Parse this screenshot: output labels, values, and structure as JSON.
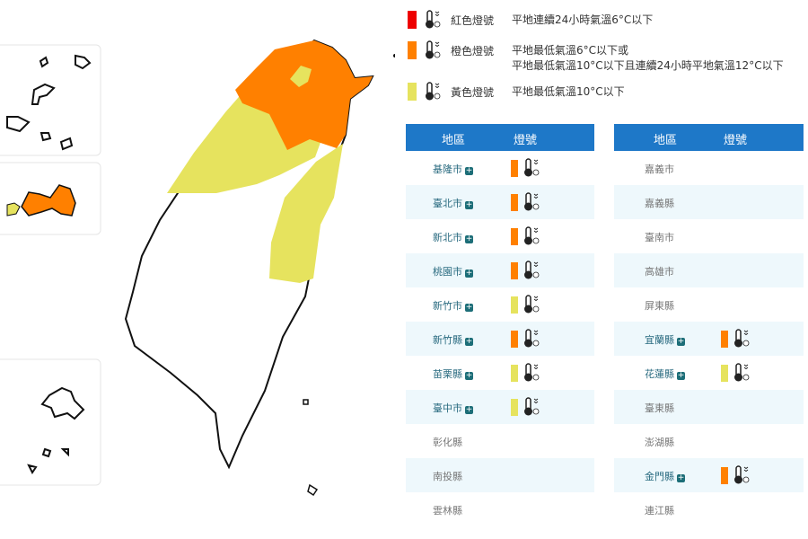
{
  "colors": {
    "red": "#ee0000",
    "orange": "#ff8000",
    "yellow": "#e6e35e",
    "header": "#1e78c8"
  },
  "legend": [
    {
      "name": "紅色燈號",
      "color": "red",
      "desc": [
        "平地連續24小時氣溫6°C以下"
      ],
      "icon": "thermometer-icon"
    },
    {
      "name": "橙色燈號",
      "color": "orange",
      "desc": [
        "平地最低氣溫6°C以下或",
        "平地最低氣溫10°C以下且連續24小時平地氣溫12°C以下"
      ],
      "icon": "thermometer-icon"
    },
    {
      "name": "黃色燈號",
      "color": "yellow",
      "desc": [
        "平地最低氣溫10°C以下"
      ],
      "icon": "thermometer-icon"
    }
  ],
  "table": {
    "headers": [
      "地區",
      "燈號"
    ],
    "left": [
      {
        "region": "基隆市",
        "signal": "orange"
      },
      {
        "region": "臺北市",
        "signal": "orange"
      },
      {
        "region": "新北市",
        "signal": "orange"
      },
      {
        "region": "桃園市",
        "signal": "orange"
      },
      {
        "region": "新竹市",
        "signal": "yellow"
      },
      {
        "region": "新竹縣",
        "signal": "orange"
      },
      {
        "region": "苗栗縣",
        "signal": "yellow"
      },
      {
        "region": "臺中市",
        "signal": "yellow"
      },
      {
        "region": "彰化縣",
        "signal": ""
      },
      {
        "region": "南投縣",
        "signal": ""
      },
      {
        "region": "雲林縣",
        "signal": ""
      }
    ],
    "right": [
      {
        "region": "嘉義市",
        "signal": ""
      },
      {
        "region": "嘉義縣",
        "signal": ""
      },
      {
        "region": "臺南市",
        "signal": ""
      },
      {
        "region": "高雄市",
        "signal": ""
      },
      {
        "region": "屏東縣",
        "signal": ""
      },
      {
        "region": "宜蘭縣",
        "signal": "orange"
      },
      {
        "region": "花蓮縣",
        "signal": "yellow"
      },
      {
        "region": "臺東縣",
        "signal": ""
      },
      {
        "region": "澎湖縣",
        "signal": ""
      },
      {
        "region": "金門縣",
        "signal": "orange"
      },
      {
        "region": "連江縣",
        "signal": ""
      }
    ]
  }
}
